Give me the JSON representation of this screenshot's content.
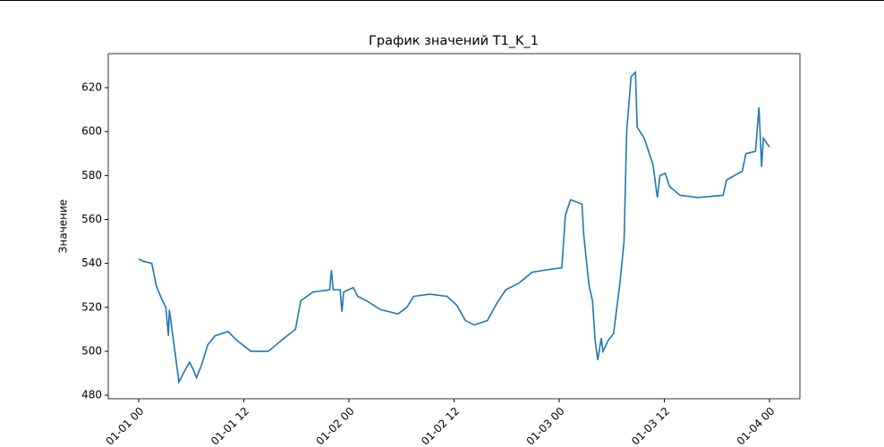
{
  "chart_data": {
    "type": "line",
    "title": "График значений T1_K_1",
    "y_label": "Значение",
    "x": [
      0,
      0.5,
      1.5,
      2,
      2.6,
      3.1,
      3.4,
      3.5,
      3.8,
      4.3,
      4.6,
      5.1,
      5.8,
      6.2,
      6.6,
      7.2,
      7.9,
      8.7,
      10.2,
      11.2,
      12.8,
      14.8,
      16.3,
      17.9,
      18.5,
      19.9,
      21.8,
      22,
      22.2,
      23,
      23.2,
      23.4,
      24.5,
      25,
      26,
      27.6,
      29.6,
      30.6,
      31.4,
      33.2,
      35.2,
      36.3,
      37.3,
      38.3,
      39.8,
      40.9,
      41.9,
      43.4,
      44.9,
      46.5,
      48.3,
      48.7,
      49.3,
      50.6,
      50.8,
      51.4,
      51.8,
      52.1,
      52.4,
      52.8,
      53,
      53.6,
      54.2,
      54.9,
      55.4,
      55.7,
      56.2,
      56.7,
      56.9,
      57.7,
      58.7,
      59.2,
      59.5,
      60.1,
      60.6,
      61.8,
      63.8,
      66.7,
      67.1,
      68.9,
      69.3,
      70.4,
      70.8,
      71.1,
      71.3,
      72
    ],
    "series": [
      {
        "name": "T1_K_1",
        "color": "#1f77b4",
        "values": [
          542,
          541,
          540,
          530,
          524,
          520,
          507,
          519,
          510,
          495,
          486,
          490,
          495,
          492,
          488,
          494,
          503,
          507,
          509,
          505,
          500,
          500,
          505,
          510,
          523,
          527,
          528,
          537,
          528,
          528,
          518,
          527,
          529,
          525,
          523,
          519,
          517,
          520,
          525,
          526,
          525,
          521,
          514,
          512,
          514,
          522,
          528,
          531,
          536,
          537,
          538,
          562,
          569,
          567,
          553,
          530,
          523,
          505,
          496,
          506,
          500,
          505,
          508,
          530,
          550,
          600,
          625,
          627,
          602,
          597,
          585,
          570,
          580,
          581,
          575,
          571,
          570,
          571,
          578,
          582,
          590,
          591,
          611,
          584,
          597,
          593
        ]
      }
    ],
    "xlim": [
      -3.47,
      75.47
    ],
    "xticks": [
      {
        "value": 0,
        "label": "01-01 00"
      },
      {
        "value": 12,
        "label": "01-01 12"
      },
      {
        "value": 24,
        "label": "01-02 00"
      },
      {
        "value": 36,
        "label": "01-02 12"
      },
      {
        "value": 48,
        "label": "01-03 00"
      },
      {
        "value": 60,
        "label": "01-03 12"
      },
      {
        "value": 72,
        "label": "01-04 00"
      }
    ],
    "ylim": [
      478.4,
      635.5
    ],
    "yticks": [
      480,
      500,
      520,
      540,
      560,
      580,
      600,
      620
    ]
  }
}
